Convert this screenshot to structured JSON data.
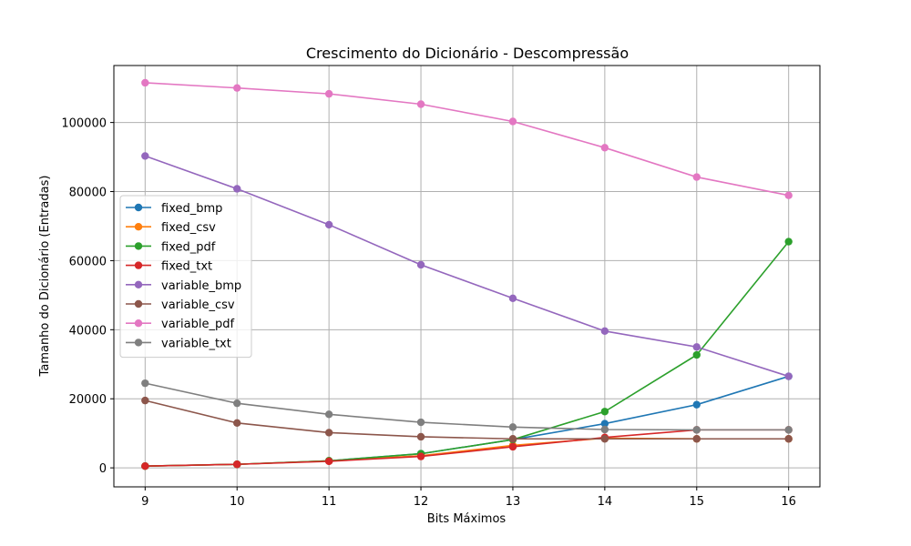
{
  "chart_data": {
    "type": "line",
    "title": "Crescimento do Dicionário - Descompressão",
    "xlabel": "Bits Máximos",
    "ylabel": "Tamanho do Dicionário (Entradas)",
    "x": [
      9,
      10,
      11,
      12,
      13,
      14,
      15,
      16
    ],
    "xlim": [
      8.66,
      16.34
    ],
    "ylim": [
      -5500,
      116500
    ],
    "yticks": [
      0,
      20000,
      40000,
      60000,
      80000,
      100000
    ],
    "ytick_labels": [
      "0",
      "20000",
      "40000",
      "60000",
      "80000",
      "100000"
    ],
    "xtick_labels": [
      "9",
      "10",
      "11",
      "12",
      "13",
      "14",
      "15",
      "16"
    ],
    "grid": true,
    "legend_position": "center-left",
    "series": [
      {
        "name": "fixed_bmp",
        "color": "#1f77b4",
        "values": [
          510,
          1020,
          2040,
          4090,
          8190,
          12800,
          18300,
          26500
        ]
      },
      {
        "name": "fixed_csv",
        "color": "#ff7f0e",
        "values": [
          510,
          1020,
          2040,
          3500,
          6500,
          8600,
          8400,
          8400
        ]
      },
      {
        "name": "fixed_pdf",
        "color": "#2ca02c",
        "values": [
          510,
          1020,
          2040,
          4090,
          8190,
          16300,
          32700,
          65500
        ]
      },
      {
        "name": "fixed_txt",
        "color": "#d62728",
        "values": [
          510,
          1020,
          1900,
          3300,
          6100,
          8800,
          11000,
          11000
        ]
      },
      {
        "name": "variable_bmp",
        "color": "#9467bd",
        "values": [
          90300,
          80800,
          70400,
          58800,
          49100,
          39600,
          35000,
          26500
        ]
      },
      {
        "name": "variable_csv",
        "color": "#8c564b",
        "values": [
          19500,
          13000,
          10200,
          9000,
          8400,
          8400,
          8400,
          8400
        ]
      },
      {
        "name": "variable_pdf",
        "color": "#e377c2",
        "values": [
          111500,
          110000,
          108300,
          105300,
          100300,
          92700,
          84200,
          78900
        ]
      },
      {
        "name": "variable_txt",
        "color": "#7f7f7f",
        "values": [
          24500,
          18700,
          15500,
          13200,
          11800,
          11100,
          11000,
          11000
        ]
      }
    ]
  }
}
